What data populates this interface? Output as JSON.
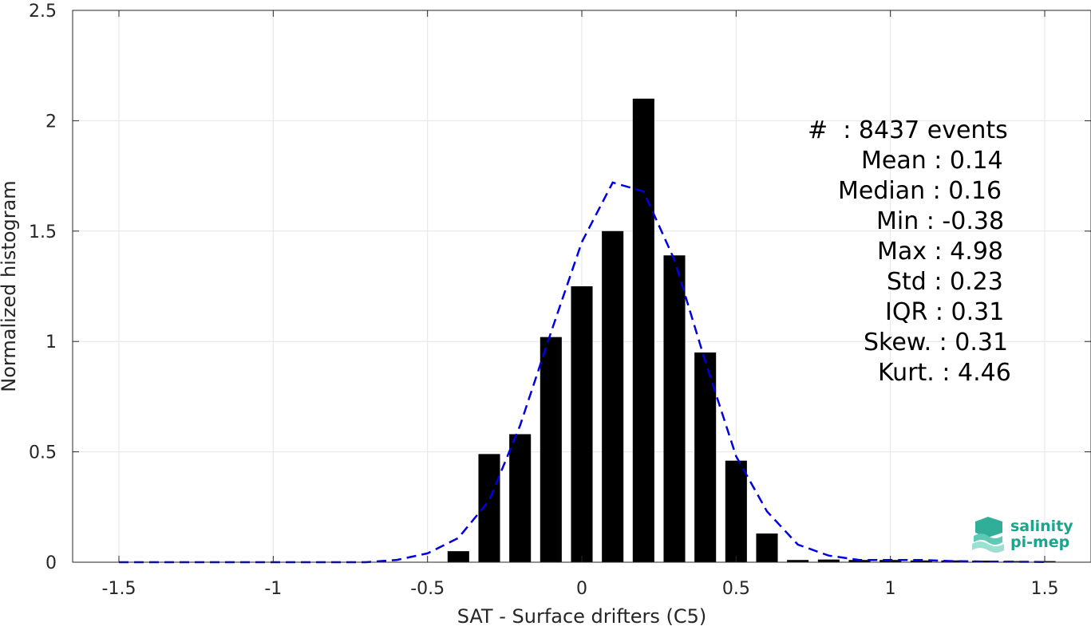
{
  "chart_data": {
    "type": "bar",
    "xlabel": "SAT - Surface drifters (C5)",
    "ylabel": "Normalized histogram",
    "xlim": [
      -1.65,
      1.65
    ],
    "ylim": [
      0,
      2.5
    ],
    "xticks": [
      -1.5,
      -1,
      -0.5,
      0,
      0.5,
      1,
      1.5
    ],
    "xtick_labels": [
      "-1.5",
      "-1",
      "-0.5",
      "0",
      "0.5",
      "1",
      "1.5"
    ],
    "yticks": [
      0,
      0.5,
      1,
      1.5,
      2,
      2.5
    ],
    "ytick_labels": [
      "0",
      "0.5",
      "1",
      "1.5",
      "2",
      "2.5"
    ],
    "grid": true,
    "bar_color": "#000000",
    "bars": {
      "x": [
        -0.4,
        -0.3,
        -0.2,
        -0.1,
        0.0,
        0.1,
        0.2,
        0.3,
        0.4,
        0.5,
        0.6,
        0.7,
        0.8,
        0.9,
        1.0,
        1.1,
        1.2,
        1.3,
        1.4,
        1.5
      ],
      "values": [
        0.05,
        0.49,
        0.58,
        1.02,
        1.25,
        1.5,
        2.1,
        1.39,
        0.95,
        0.46,
        0.13,
        0.01,
        0.012,
        0.01,
        0.01,
        0.008,
        0.008,
        0.007,
        0.005,
        0.005
      ]
    },
    "fit_curve": {
      "style": "dashed",
      "color": "#0000e0",
      "x": [
        -1.5,
        -1.4,
        -1.3,
        -1.2,
        -1.1,
        -1.0,
        -0.9,
        -0.8,
        -0.7,
        -0.6,
        -0.5,
        -0.4,
        -0.3,
        -0.2,
        -0.1,
        0.0,
        0.1,
        0.2,
        0.3,
        0.4,
        0.5,
        0.6,
        0.7,
        0.8,
        0.9,
        1.0,
        1.1,
        1.2,
        1.3,
        1.4,
        1.5
      ],
      "y": [
        0.0,
        0.0,
        0.0,
        0.0,
        0.0,
        0.0,
        0.0,
        0.0,
        0.0,
        0.01,
        0.04,
        0.11,
        0.28,
        0.62,
        1.04,
        1.45,
        1.72,
        1.68,
        1.37,
        0.91,
        0.48,
        0.23,
        0.08,
        0.03,
        0.01,
        0.01,
        0.01,
        0.005,
        0.003,
        0.002,
        0.001
      ]
    }
  },
  "stats": [
    "#  : 8437 events",
    "Mean : 0.14",
    "Median : 0.16",
    "Min : -0.38",
    "Max : 4.98",
    "Std : 0.23",
    "IQR : 0.31",
    "Skew. : 0.31",
    "Kurt. : 4.46"
  ],
  "logo": {
    "line1": "salinity",
    "line2": "pi-mep",
    "color": "#1aa58c"
  }
}
